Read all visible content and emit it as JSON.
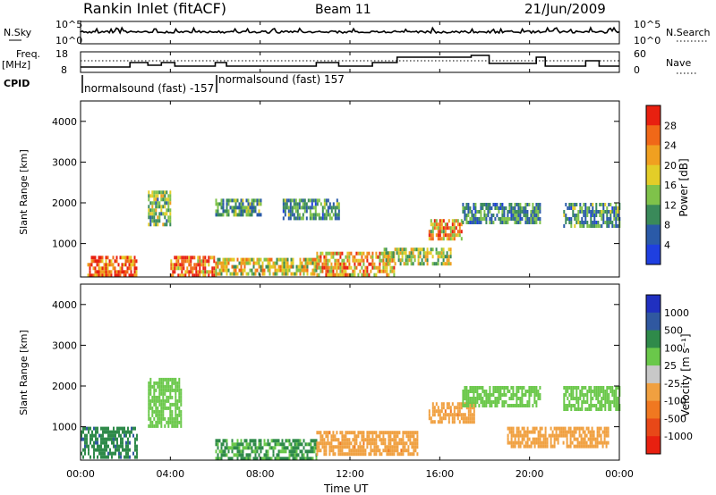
{
  "header": {
    "title": "Rankin Inlet (fitACF)",
    "beam": "Beam 11",
    "date": "21/Jun/2009"
  },
  "labels": {
    "nsky": "N.Sky",
    "nsearch": "N.Search",
    "freq_line1": "Freq.",
    "freq_line2": "[MHz]",
    "nave": "Nave",
    "cpid": "CPID"
  },
  "noise_panel": {
    "left_ticks": [
      "10^5",
      "10^0"
    ],
    "right_ticks": [
      "10^5",
      "10^0"
    ]
  },
  "freq_panel": {
    "left_ticks": [
      "18",
      "8"
    ],
    "right_ticks": [
      "60",
      "0"
    ]
  },
  "cpid_annotations": [
    {
      "text": "normalsound (fast) -157"
    },
    {
      "text": "normalsound (fast) 157"
    }
  ],
  "x_axis": {
    "label": "Time UT",
    "ticks": [
      "00:00",
      "04:00",
      "08:00",
      "12:00",
      "16:00",
      "20:00",
      "00:00"
    ]
  },
  "power_panel": {
    "ylabel": "Slant Range [km]",
    "yticks": [
      "1000",
      "2000",
      "3000",
      "4000"
    ],
    "colorbar_label": "Power [dB]",
    "colorbar_ticks": [
      "4",
      "8",
      "12",
      "16",
      "20",
      "24",
      "28"
    ],
    "colors": [
      "#1f3fe0",
      "#2a5aa8",
      "#3a8a5a",
      "#7fc24a",
      "#e3cd28",
      "#f0a020",
      "#f06818",
      "#e82010"
    ]
  },
  "velocity_panel": {
    "ylabel": "Slant Range [km]",
    "yticks": [
      "1000",
      "2000",
      "3000",
      "4000"
    ],
    "colorbar_label": "Velocity [m s⁻¹]",
    "colorbar_ticks": [
      "1000",
      "500",
      "100",
      "25",
      "-25",
      "-100",
      "-500",
      "-1000"
    ],
    "colors": [
      "#2030c0",
      "#3058a0",
      "#2f8a4a",
      "#6ac84a",
      "#c8c8c8",
      "#f0a040",
      "#f07820",
      "#e84818",
      "#e82010"
    ]
  },
  "chart_data": [
    {
      "type": "heatmap",
      "title": "Rankin Inlet (fitACF)",
      "subtitle": "Beam 11",
      "xlabel": "Time UT",
      "ylabel": "Slant Range [km]",
      "x_range": [
        "00:00",
        "24:00"
      ],
      "ylim": [
        180,
        4500
      ],
      "colorbar": {
        "label": "Power [dB]",
        "range": [
          0,
          30
        ]
      },
      "regions": [
        {
          "t": [
            0.3,
            2.5
          ],
          "range": [
            250,
            700
          ],
          "value": 27
        },
        {
          "t": [
            4.0,
            6.0
          ],
          "range": [
            250,
            700
          ],
          "value": 26
        },
        {
          "t": [
            6.0,
            10.5
          ],
          "range": [
            250,
            650
          ],
          "value": 18
        },
        {
          "t": [
            10.5,
            14.0
          ],
          "range": [
            250,
            800
          ],
          "value": 22
        },
        {
          "t": [
            15.5,
            17.0
          ],
          "range": [
            1100,
            1600
          ],
          "value": 21
        },
        {
          "t": [
            13.5,
            16.5
          ],
          "range": [
            500,
            900
          ],
          "value": 16
        },
        {
          "t": [
            3.0,
            4.0
          ],
          "range": [
            1500,
            2300
          ],
          "value": 14
        },
        {
          "t": [
            6.0,
            8.0
          ],
          "range": [
            1700,
            2100
          ],
          "value": 11
        },
        {
          "t": [
            9.0,
            11.5
          ],
          "range": [
            1600,
            2100
          ],
          "value": 10
        },
        {
          "t": [
            17.0,
            20.5
          ],
          "range": [
            1500,
            2000
          ],
          "value": 9
        },
        {
          "t": [
            21.5,
            24.0
          ],
          "range": [
            1400,
            2000
          ],
          "value": 10
        }
      ]
    },
    {
      "type": "heatmap",
      "xlabel": "Time UT",
      "ylabel": "Slant Range [km]",
      "x_range": [
        "00:00",
        "24:00"
      ],
      "ylim": [
        180,
        4500
      ],
      "colorbar": {
        "label": "Velocity [m s⁻¹]",
        "range": [
          -1000,
          1000
        ]
      },
      "regions": [
        {
          "t": [
            0.0,
            2.5
          ],
          "range": [
            250,
            1000
          ],
          "value": 80
        },
        {
          "t": [
            3.0,
            4.5
          ],
          "range": [
            1000,
            2200
          ],
          "value": 0
        },
        {
          "t": [
            6.0,
            10.5
          ],
          "range": [
            250,
            700
          ],
          "value": 30
        },
        {
          "t": [
            10.5,
            15.0
          ],
          "range": [
            300,
            900
          ],
          "value": -400
        },
        {
          "t": [
            15.5,
            17.5
          ],
          "range": [
            1100,
            1600
          ],
          "value": -400
        },
        {
          "t": [
            17.0,
            20.5
          ],
          "range": [
            1500,
            2000
          ],
          "value": 0
        },
        {
          "t": [
            21.5,
            24.0
          ],
          "range": [
            1400,
            2000
          ],
          "value": 0
        },
        {
          "t": [
            19.0,
            23.5
          ],
          "range": [
            500,
            1000
          ],
          "value": -150
        }
      ]
    }
  ]
}
